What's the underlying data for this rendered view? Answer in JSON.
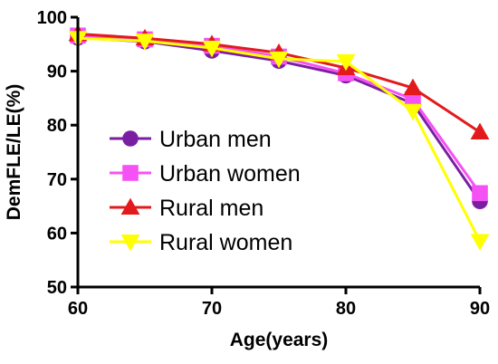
{
  "chart_data": {
    "type": "line",
    "xlabel": "Age(years)",
    "ylabel": "DemFLE/LE(%)",
    "xlim": [
      60,
      90
    ],
    "ylim": [
      50,
      100
    ],
    "xticks": [
      "60",
      "70",
      "80",
      "90"
    ],
    "yticks": [
      "50",
      "60",
      "70",
      "80",
      "90",
      "100"
    ],
    "x": [
      60,
      65,
      70,
      75,
      80,
      85,
      90
    ],
    "grid": false,
    "legend": "center-left",
    "series": [
      {
        "name": "Urban men",
        "color": "#7b1fa2",
        "marker": "circle",
        "values": [
          96.2,
          95.5,
          93.8,
          91.9,
          89.2,
          84.0,
          65.9
        ]
      },
      {
        "name": "Urban women",
        "color": "#f552f5",
        "marker": "square",
        "values": [
          96.6,
          95.9,
          94.7,
          92.7,
          89.6,
          84.8,
          67.4
        ]
      },
      {
        "name": "Rural men",
        "color": "#e31a1c",
        "marker": "triangle-up",
        "values": [
          96.9,
          96.1,
          95.0,
          93.4,
          90.6,
          86.9,
          78.7
        ]
      },
      {
        "name": "Rural women",
        "color": "#ffff00",
        "marker": "triangle-down",
        "values": [
          96.1,
          95.6,
          94.3,
          92.3,
          91.8,
          82.6,
          58.5
        ]
      }
    ]
  }
}
